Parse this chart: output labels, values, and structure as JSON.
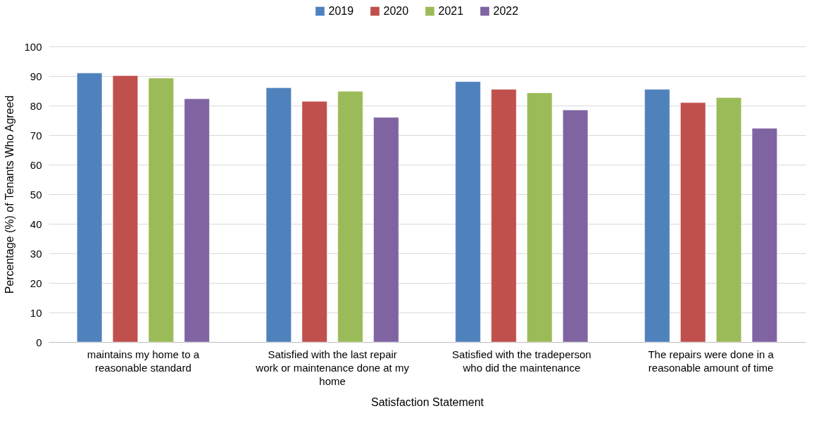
{
  "chart_data": {
    "type": "bar",
    "categories": [
      "maintains my home to a reasonable standard",
      "Satisfied with the last repair work or maintenance done at my home",
      "Satisfied with the tradeperson who did the maintenance",
      "The repairs were done in a reasonable amount of time"
    ],
    "series": [
      {
        "name": "2019",
        "color": "#4f81bd",
        "values": [
          91.0,
          86.0,
          88.1,
          85.5
        ]
      },
      {
        "name": "2020",
        "color": "#c0504d",
        "values": [
          90.1,
          81.4,
          85.5,
          81.0
        ]
      },
      {
        "name": "2021",
        "color": "#9bbb59",
        "values": [
          89.3,
          84.8,
          84.3,
          82.7
        ]
      },
      {
        "name": "2022",
        "color": "#8064a2",
        "values": [
          82.3,
          76.0,
          78.5,
          72.3
        ]
      }
    ],
    "xlabel": "Satisfaction Statement",
    "ylabel": "Percentage (%) of Tenants Who Agreed",
    "ylim": [
      0,
      100
    ],
    "yticks": [
      0,
      10,
      20,
      30,
      40,
      50,
      60,
      70,
      80,
      90,
      100
    ],
    "grid": "y",
    "legend": "top"
  }
}
